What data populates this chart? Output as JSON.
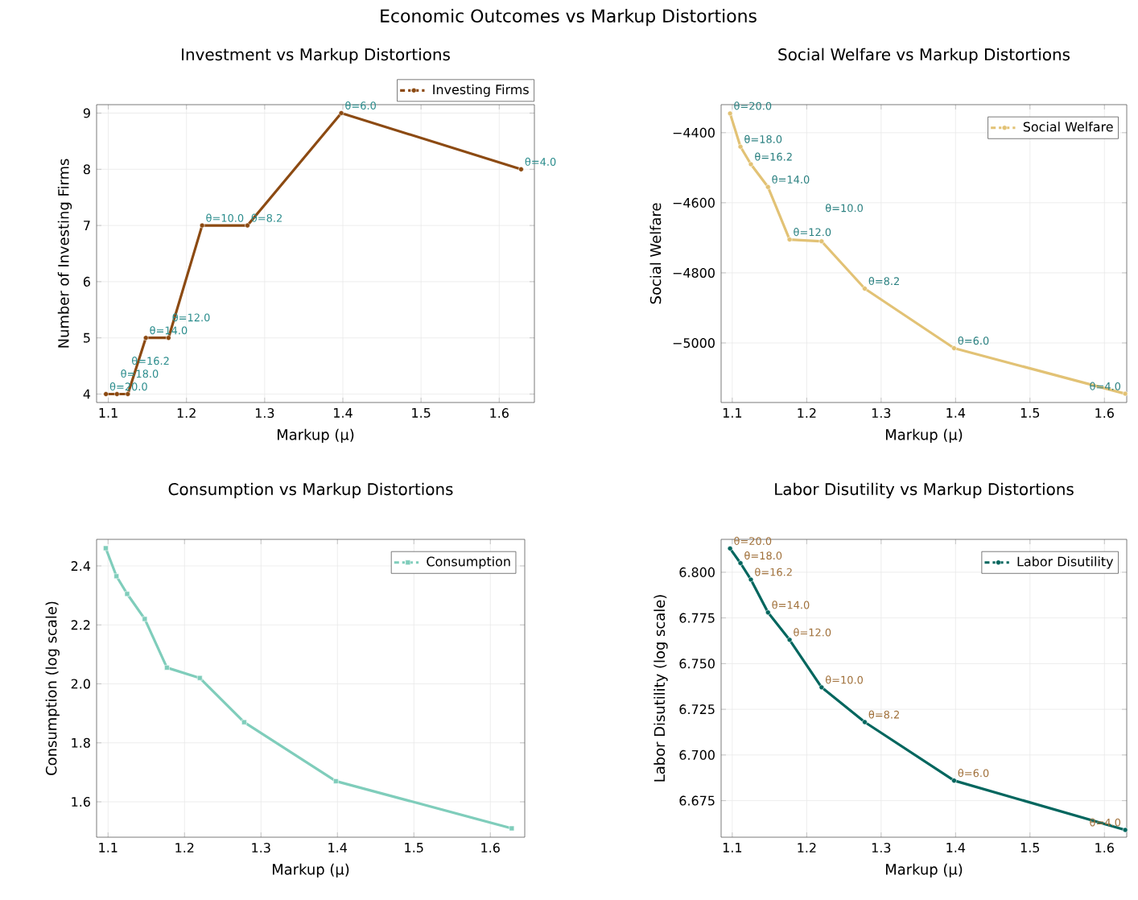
{
  "chart_data": [
    {
      "type": "other",
      "title": "Economic Outcomes vs Markup Distortions"
    },
    {
      "type": "line",
      "title": "Investment vs Markup Distortions",
      "xlabel": "Markup (μ)",
      "ylabel": "Number of Investing Firms",
      "x": [
        1.097,
        1.111,
        1.125,
        1.148,
        1.177,
        1.22,
        1.278,
        1.398,
        1.628
      ],
      "series": [
        {
          "name": "Investing Firms",
          "color": "#8c4a12",
          "values": [
            4,
            4,
            4,
            5,
            5,
            7,
            7,
            9,
            8
          ]
        }
      ],
      "xlim": [
        1.085,
        1.645
      ],
      "ylim": [
        3.85,
        9.15
      ],
      "xticks": [
        1.1,
        1.2,
        1.3,
        1.4,
        1.5,
        1.6
      ],
      "yticks": [
        4,
        5,
        6,
        7,
        8,
        9
      ],
      "grid": true,
      "legend": "top right",
      "marker": "circle",
      "annotations": [
        {
          "text": "θ=20.0",
          "x": 1.097,
          "y": 4
        },
        {
          "text": "θ=18.0",
          "x": 1.111,
          "y": 4
        },
        {
          "text": "θ=16.2",
          "x": 1.125,
          "y": 4
        },
        {
          "text": "θ=14.0",
          "x": 1.148,
          "y": 5
        },
        {
          "text": "θ=12.0",
          "x": 1.177,
          "y": 5
        },
        {
          "text": "θ=10.0",
          "x": 1.22,
          "y": 7
        },
        {
          "text": "θ=8.2",
          "x": 1.278,
          "y": 7
        },
        {
          "text": "θ=6.0",
          "x": 1.398,
          "y": 9
        },
        {
          "text": "θ=4.0",
          "x": 1.628,
          "y": 8
        }
      ]
    },
    {
      "type": "line",
      "title": "Social Welfare vs Markup Distortions",
      "xlabel": "Markup (μ)",
      "ylabel": "Social Welfare",
      "x": [
        1.097,
        1.111,
        1.125,
        1.148,
        1.177,
        1.22,
        1.278,
        1.398,
        1.628
      ],
      "series": [
        {
          "name": "Social Welfare",
          "color": "#e2c275",
          "values": [
            -4345,
            -4440,
            -4490,
            -4555,
            -4705,
            -4710,
            -4845,
            -5015,
            -5145
          ]
        }
      ],
      "xlim": [
        1.085,
        1.63
      ],
      "ylim": [
        -5170,
        -4320
      ],
      "xticks": [
        1.1,
        1.2,
        1.3,
        1.4,
        1.5,
        1.6
      ],
      "yticks": [
        {
          "value": -5000,
          "label": "−5000"
        },
        {
          "value": -4800,
          "label": "−4800"
        },
        {
          "value": -4600,
          "label": "−4600"
        },
        {
          "value": -4400,
          "label": "−4400"
        }
      ],
      "grid": true,
      "legend": "top right",
      "marker": "circle",
      "annotations": [
        {
          "text": "θ=20.0",
          "x": 1.097,
          "y": -4345
        },
        {
          "text": "θ=18.0",
          "x": 1.111,
          "y": -4440
        },
        {
          "text": "θ=16.2",
          "x": 1.125,
          "y": -4490
        },
        {
          "text": "θ=14.0",
          "x": 1.148,
          "y": -4555
        },
        {
          "text": "θ=12.0",
          "x": 1.177,
          "y": -4705
        },
        {
          "text": "θ=10.0",
          "x": 1.22,
          "y": -4710
        },
        {
          "text": "θ=8.2",
          "x": 1.278,
          "y": -4845
        },
        {
          "text": "θ=6.0",
          "x": 1.398,
          "y": -5015
        },
        {
          "text": "θ=4.0",
          "x": 1.628,
          "y": -5145
        }
      ]
    },
    {
      "type": "line",
      "title": "Consumption vs Markup Distortions",
      "xlabel": "Markup (μ)",
      "ylabel": "Consumption (log scale)",
      "x": [
        1.097,
        1.111,
        1.125,
        1.148,
        1.177,
        1.22,
        1.278,
        1.398,
        1.628
      ],
      "series": [
        {
          "name": "Consumption",
          "color": "#7fcdbb",
          "values": [
            2.46,
            2.365,
            2.305,
            2.22,
            2.055,
            2.02,
            1.87,
            1.67,
            1.51
          ]
        }
      ],
      "xlim": [
        1.085,
        1.645
      ],
      "ylim": [
        1.48,
        2.49
      ],
      "xticks": [
        1.1,
        1.2,
        1.3,
        1.4,
        1.5,
        1.6
      ],
      "yticks": [
        {
          "value": 1.6,
          "label": "1.6"
        },
        {
          "value": 1.8,
          "label": "1.8"
        },
        {
          "value": 2.0,
          "label": "2.0"
        },
        {
          "value": 2.2,
          "label": "2.2"
        },
        {
          "value": 2.4,
          "label": "2.4"
        }
      ],
      "grid": true,
      "legend": "top right",
      "marker": "square"
    },
    {
      "type": "line",
      "title": "Labor Disutility vs Markup Distortions",
      "xlabel": "Markup (μ)",
      "ylabel": "Labor Disutility (log scale)",
      "x": [
        1.097,
        1.111,
        1.125,
        1.148,
        1.177,
        1.22,
        1.278,
        1.398,
        1.628
      ],
      "series": [
        {
          "name": "Labor Disutility",
          "color": "#01665e",
          "values": [
            6.813,
            6.805,
            6.796,
            6.778,
            6.763,
            6.737,
            6.718,
            6.686,
            6.659
          ]
        }
      ],
      "xlim": [
        1.085,
        1.63
      ],
      "ylim": [
        6.655,
        6.818
      ],
      "xticks": [
        1.1,
        1.2,
        1.3,
        1.4,
        1.5,
        1.6
      ],
      "yticks": [
        {
          "value": 6.675,
          "label": "6.675"
        },
        {
          "value": 6.7,
          "label": "6.700"
        },
        {
          "value": 6.725,
          "label": "6.725"
        },
        {
          "value": 6.75,
          "label": "6.750"
        },
        {
          "value": 6.775,
          "label": "6.775"
        },
        {
          "value": 6.8,
          "label": "6.800"
        }
      ],
      "grid": true,
      "legend": "top right",
      "marker": "circle",
      "annotations": [
        {
          "text": "θ=20.0",
          "x": 1.097,
          "y": 6.813
        },
        {
          "text": "θ=18.0",
          "x": 1.111,
          "y": 6.805
        },
        {
          "text": "θ=16.2",
          "x": 1.125,
          "y": 6.796
        },
        {
          "text": "θ=14.0",
          "x": 1.148,
          "y": 6.778
        },
        {
          "text": "θ=12.0",
          "x": 1.177,
          "y": 6.763
        },
        {
          "text": "θ=10.0",
          "x": 1.22,
          "y": 6.737
        },
        {
          "text": "θ=8.2",
          "x": 1.278,
          "y": 6.718
        },
        {
          "text": "θ=6.0",
          "x": 1.398,
          "y": 6.686
        },
        {
          "text": "θ=4.0",
          "x": 1.628,
          "y": 6.659
        }
      ]
    }
  ]
}
